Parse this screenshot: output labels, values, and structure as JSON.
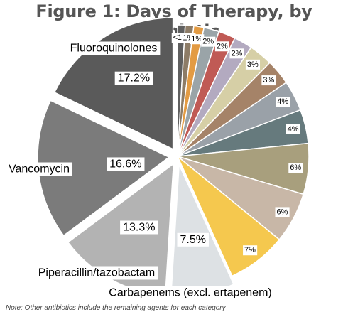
{
  "chart_data": {
    "type": "pie",
    "title": "Figure 1: Days of Therapy, by Antibiotic",
    "slices": [
      {
        "name": "",
        "label": "<1%",
        "value": 0.9,
        "color": "#5f5f5f"
      },
      {
        "name": "",
        "label": "1%",
        "value": 1.0,
        "color": "#8d7c67"
      },
      {
        "name": "",
        "label": "1%",
        "value": 1.2,
        "color": "#e39b43"
      },
      {
        "name": "",
        "label": "2%",
        "value": 1.8,
        "color": "#9aa4a8"
      },
      {
        "name": "",
        "label": "2%",
        "value": 2.0,
        "color": "#c05a55"
      },
      {
        "name": "",
        "label": "2%",
        "value": 2.2,
        "color": "#b3aac0"
      },
      {
        "name": "",
        "label": "3%",
        "value": 2.8,
        "color": "#d6cfa6"
      },
      {
        "name": "",
        "label": "3%",
        "value": 3.0,
        "color": "#a58368"
      },
      {
        "name": "",
        "label": "4%",
        "value": 3.6,
        "color": "#9aa1a8"
      },
      {
        "name": "",
        "label": "4%",
        "value": 4.0,
        "color": "#667a7d"
      },
      {
        "name": "",
        "label": "6%",
        "value": 6.0,
        "color": "#a89f7d"
      },
      {
        "name": "",
        "label": "6%",
        "value": 6.0,
        "color": "#c8b7a7"
      },
      {
        "name": "",
        "label": "7%",
        "value": 7.0,
        "color": "#f5c84e"
      },
      {
        "name": "Carbapenems (excl. ertapenem)",
        "label": "7.5%",
        "value": 7.5,
        "color": "#dde1e4"
      },
      {
        "name": "Piperacillin/tazobactam",
        "label": "13.3%",
        "value": 13.3,
        "color": "#b3b3b3"
      },
      {
        "name": "Vancomycin",
        "label": "16.6%",
        "value": 16.6,
        "color": "#7b7b7b"
      },
      {
        "name": "Fluoroquinolones",
        "label": "17.2%",
        "value": 17.2,
        "color": "#5a5a5a"
      }
    ],
    "legend": "none",
    "note": "Note: Other antibiotics include the remaining agents for each category"
  }
}
